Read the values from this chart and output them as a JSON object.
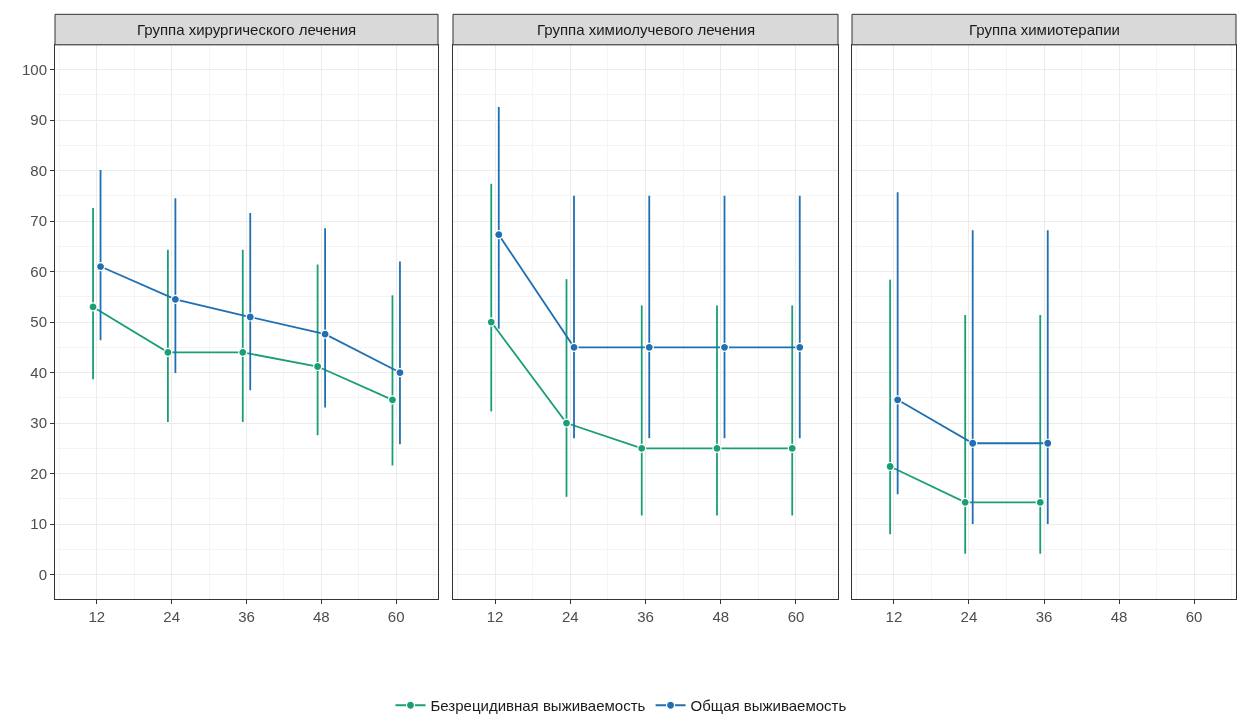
{
  "chart_data": [
    {
      "type": "line",
      "title": "Группа хирургического лечения",
      "xlim": [
        5.3,
        66.7
      ],
      "xticks": [
        12,
        24,
        36,
        48,
        60
      ],
      "ylim": [
        -4.9,
        104.9
      ],
      "yticks": [
        0,
        10,
        20,
        30,
        40,
        50,
        60,
        70,
        80,
        90,
        100
      ],
      "grid": true,
      "marker": "circle",
      "legend": "bottom",
      "series": [
        {
          "name": "Безрецидивная выживаемость",
          "color": "#1a9e77",
          "x": [
            11.4,
            23.4,
            35.4,
            47.4,
            59.4
          ],
          "values": [
            53,
            44,
            44,
            41.2,
            34.6
          ],
          "errors": [
            [
              38.7,
              72.6
            ],
            [
              30.2,
              64.3
            ],
            [
              30.2,
              64.3
            ],
            [
              27.6,
              61.4
            ],
            [
              21.6,
              55.3
            ]
          ]
        },
        {
          "name": "Общая выживаемость",
          "color": "#1f6fb2",
          "x": [
            12.6,
            24.6,
            36.6,
            48.6,
            60.6
          ],
          "values": [
            61,
            54.5,
            51,
            47.6,
            40
          ],
          "errors": [
            [
              46.4,
              80.1
            ],
            [
              39.9,
              74.5
            ],
            [
              36.5,
              71.6
            ],
            [
              33.1,
              68.6
            ],
            [
              25.8,
              62
            ]
          ]
        }
      ]
    },
    {
      "type": "line",
      "title": "Группа химиолучевого лечения",
      "xlim": [
        5.3,
        66.7
      ],
      "xticks": [
        12,
        24,
        36,
        48,
        60
      ],
      "ylim": [
        -4.9,
        104.9
      ],
      "yticks": [
        0,
        10,
        20,
        30,
        40,
        50,
        60,
        70,
        80,
        90,
        100
      ],
      "grid": true,
      "marker": "circle",
      "tick_labels": "x",
      "series": [
        {
          "color": "#1a9e77",
          "x": [
            11.4,
            23.4,
            35.4,
            47.4,
            59.4
          ],
          "values": [
            50,
            30,
            25,
            25,
            25
          ],
          "errors": [
            [
              32.3,
              77.4
            ],
            [
              15.4,
              58.5
            ],
            [
              11.7,
              53.3
            ],
            [
              11.7,
              53.3
            ],
            [
              11.7,
              53.3
            ]
          ]
        },
        {
          "color": "#1f6fb2",
          "x": [
            12.6,
            24.6,
            36.6,
            48.6,
            60.6
          ],
          "values": [
            67.3,
            45,
            45,
            45,
            45
          ],
          "errors": [
            [
              48.7,
              92.6
            ],
            [
              27,
              75
            ],
            [
              27,
              75
            ],
            [
              27,
              75
            ],
            [
              27,
              75
            ]
          ]
        }
      ]
    },
    {
      "type": "line",
      "title": "Группа химиотерапии",
      "xlim": [
        5.3,
        66.7
      ],
      "xticks": [
        12,
        24,
        36,
        48,
        60
      ],
      "ylim": [
        -4.9,
        104.9
      ],
      "yticks": [
        0,
        10,
        20,
        30,
        40,
        50,
        60,
        70,
        80,
        90,
        100
      ],
      "grid": true,
      "marker": "circle",
      "tick_labels": "x",
      "series": [
        {
          "color": "#1a9e77",
          "x": [
            11.4,
            23.4,
            35.4
          ],
          "values": [
            21.4,
            14.3,
            14.3
          ],
          "errors": [
            [
              8,
              58.4
            ],
            [
              4.1,
              51.4
            ],
            [
              4.1,
              51.4
            ]
          ]
        },
        {
          "color": "#1f6fb2",
          "x": [
            12.6,
            24.6,
            36.6
          ],
          "values": [
            34.6,
            26,
            26
          ],
          "errors": [
            [
              15.9,
              75.7
            ],
            [
              10,
              68.2
            ],
            [
              10,
              68.2
            ]
          ]
        }
      ]
    }
  ]
}
